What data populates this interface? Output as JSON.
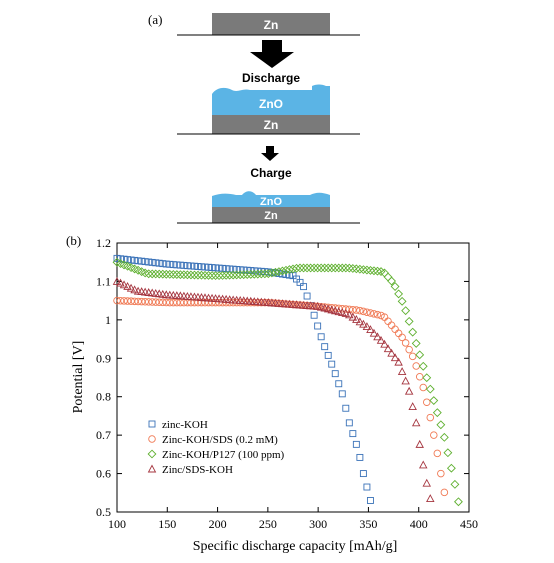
{
  "panel_a_label": "(a)",
  "panel_b_label": "(b)",
  "schematic": {
    "zn_label": "Zn",
    "zno_label": "ZnO",
    "step1": "Discharge",
    "step2": "Charge",
    "colors": {
      "zn": "#7a7a7a",
      "zno": "#5bb4e5",
      "arrow": "#000000"
    }
  },
  "chart_data": {
    "type": "scatter",
    "title": "",
    "xlabel": "Specific discharge capacity [mAh/g]",
    "ylabel": "Potential [V]",
    "xlim": [
      100,
      450
    ],
    "ylim": [
      0.5,
      1.2
    ],
    "xticks": [
      100,
      150,
      200,
      250,
      300,
      350,
      400,
      450
    ],
    "yticks": [
      0.5,
      0.6,
      0.7,
      0.8,
      0.9,
      1.0,
      1.1,
      1.2
    ],
    "ytick_labels": [
      "0.5",
      "0.6",
      "0.7",
      "0.8",
      "0.9",
      "1",
      "1.1",
      "1.2"
    ],
    "legend_position": "bottom-left",
    "grid": false,
    "series": [
      {
        "name": "zinc-KOH",
        "marker": "square",
        "color": "#3a72b8",
        "curve": [
          [
            100,
            1.16
          ],
          [
            150,
            1.145
          ],
          [
            200,
            1.135
          ],
          [
            250,
            1.125
          ],
          [
            275,
            1.115
          ],
          [
            285,
            1.09
          ],
          [
            295,
            1.02
          ],
          [
            305,
            0.94
          ],
          [
            315,
            0.875
          ],
          [
            325,
            0.8
          ],
          [
            330,
            0.74
          ],
          [
            335,
            0.7
          ],
          [
            340,
            0.66
          ],
          [
            345,
            0.6
          ],
          [
            350,
            0.55
          ],
          [
            353,
            0.52
          ]
        ],
        "spacing": 3.5
      },
      {
        "name": "Zinc-KOH/SDS (0.2 mM)",
        "marker": "circle",
        "color": "#f07a55",
        "curve": [
          [
            100,
            1.05
          ],
          [
            150,
            1.045
          ],
          [
            200,
            1.045
          ],
          [
            250,
            1.045
          ],
          [
            300,
            1.035
          ],
          [
            340,
            1.025
          ],
          [
            365,
            1.01
          ],
          [
            375,
            0.98
          ],
          [
            385,
            0.95
          ],
          [
            395,
            0.9
          ],
          [
            405,
            0.82
          ],
          [
            412,
            0.74
          ],
          [
            418,
            0.66
          ],
          [
            422,
            0.6
          ],
          [
            427,
            0.53
          ]
        ],
        "spacing": 3.5
      },
      {
        "name": "Zinc-KOH/P127 (100 ppm)",
        "marker": "diamond",
        "color": "#5fb030",
        "curve": [
          [
            100,
            1.15
          ],
          [
            130,
            1.12
          ],
          [
            200,
            1.115
          ],
          [
            250,
            1.12
          ],
          [
            280,
            1.135
          ],
          [
            330,
            1.135
          ],
          [
            365,
            1.125
          ],
          [
            375,
            1.095
          ],
          [
            385,
            1.04
          ],
          [
            395,
            0.96
          ],
          [
            405,
            0.875
          ],
          [
            415,
            0.79
          ],
          [
            425,
            0.7
          ],
          [
            432,
            0.62
          ],
          [
            437,
            0.56
          ],
          [
            440,
            0.52
          ]
        ],
        "spacing": 3.5
      },
      {
        "name": "Zinc/SDS-KOH",
        "marker": "triangle",
        "color": "#a5353f",
        "curve": [
          [
            100,
            1.1
          ],
          [
            120,
            1.075
          ],
          [
            150,
            1.065
          ],
          [
            200,
            1.055
          ],
          [
            250,
            1.045
          ],
          [
            300,
            1.035
          ],
          [
            330,
            1.015
          ],
          [
            350,
            0.98
          ],
          [
            365,
            0.94
          ],
          [
            380,
            0.89
          ],
          [
            390,
            0.82
          ],
          [
            397,
            0.74
          ],
          [
            402,
            0.66
          ],
          [
            406,
            0.6
          ],
          [
            410,
            0.55
          ],
          [
            413,
            0.52
          ]
        ],
        "spacing": 3.5
      }
    ]
  }
}
